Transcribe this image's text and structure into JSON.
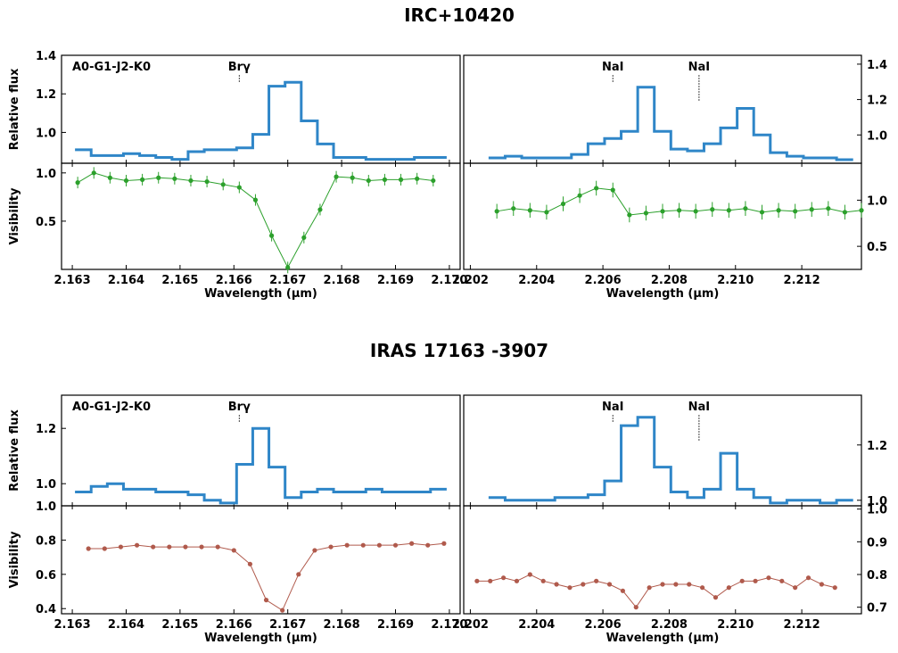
{
  "colors": {
    "flux": "#2f86c8",
    "vis_top": "#2ca02c",
    "vis_bottom": "#b05a4c"
  },
  "chart_data": [
    {
      "title": "IRC+10420",
      "panels": [
        {
          "type": "line",
          "ylabel": "Relative flux",
          "ylabel_side": "left",
          "step": true,
          "x": [
            2.1632,
            2.1635,
            2.1638,
            2.1641,
            2.1644,
            2.1647,
            2.165,
            2.1653,
            2.1656,
            2.1659,
            2.1662,
            2.1665,
            2.1668,
            2.1671,
            2.1674,
            2.1677,
            2.168,
            2.1683,
            2.1686,
            2.1689,
            2.1692,
            2.1695,
            2.1698
          ],
          "values": [
            0.91,
            0.88,
            0.88,
            0.89,
            0.88,
            0.87,
            0.86,
            0.9,
            0.91,
            0.91,
            0.92,
            0.99,
            1.24,
            1.26,
            1.06,
            0.94,
            0.87,
            0.87,
            0.86,
            0.86,
            0.86,
            0.87,
            0.87
          ],
          "xlim": [
            2.1628,
            2.1702
          ],
          "ylim": [
            0.84,
            1.4
          ],
          "yticks": [
            "1.0",
            "1.2",
            "1.4"
          ],
          "ytick_values": [
            1.0,
            1.2,
            1.4
          ],
          "legend": "A0-G1-J2-K0",
          "annotations": [
            {
              "label": "Brγ",
              "x": 2.1661
            }
          ]
        },
        {
          "type": "line",
          "ylabel": "Relative flux",
          "ylabel_side": "right",
          "step": true,
          "x": [
            2.2028,
            2.2033,
            2.2038,
            2.2043,
            2.2048,
            2.2053,
            2.2058,
            2.2063,
            2.2068,
            2.2073,
            2.2078,
            2.2083,
            2.2088,
            2.2093,
            2.2098,
            2.2103,
            2.2108,
            2.2113,
            2.2118,
            2.2123,
            2.2128,
            2.2133
          ],
          "values": [
            0.87,
            0.88,
            0.87,
            0.87,
            0.87,
            0.89,
            0.95,
            0.98,
            1.02,
            1.27,
            1.02,
            0.92,
            0.91,
            0.95,
            1.04,
            1.15,
            1.0,
            0.9,
            0.88,
            0.87,
            0.87,
            0.86
          ],
          "xlim": [
            2.2018,
            2.2138
          ],
          "ylim": [
            0.84,
            1.45
          ],
          "yticks": [
            "1.0",
            "1.2",
            "1.4"
          ],
          "ytick_values": [
            1.0,
            1.2,
            1.4
          ],
          "annotations": [
            {
              "label": "NaI",
              "x": 2.2063
            },
            {
              "label": "NaI",
              "x": 2.2089
            }
          ]
        },
        {
          "type": "line",
          "ylabel": "Visibility",
          "ylabel_side": "left",
          "xlabel": "Wavelength (μm)",
          "x": [
            2.1631,
            2.1634,
            2.1637,
            2.164,
            2.1643,
            2.1646,
            2.1649,
            2.1652,
            2.1655,
            2.1658,
            2.1661,
            2.1664,
            2.1667,
            2.167,
            2.1673,
            2.1676,
            2.1679,
            2.1682,
            2.1685,
            2.1688,
            2.1691,
            2.1694,
            2.1697
          ],
          "values": [
            0.9,
            1.0,
            0.95,
            0.92,
            0.93,
            0.95,
            0.94,
            0.92,
            0.91,
            0.88,
            0.85,
            0.72,
            0.35,
            0.02,
            0.33,
            0.62,
            0.96,
            0.95,
            0.92,
            0.93,
            0.93,
            0.94,
            0.92
          ],
          "error": 0.06,
          "xlim": [
            2.1628,
            2.1702
          ],
          "ylim": [
            0.0,
            1.1
          ],
          "xticks": [
            "2.163",
            "2.164",
            "2.165",
            "2.166",
            "2.167",
            "2.168",
            "2.169",
            "2.170"
          ],
          "xtick_values": [
            2.163,
            2.164,
            2.165,
            2.166,
            2.167,
            2.168,
            2.169,
            2.17
          ],
          "yticks": [
            "0.5",
            "1.0"
          ],
          "ytick_values": [
            0.5,
            1.0
          ]
        },
        {
          "type": "line",
          "ylabel": "Visibility",
          "ylabel_side": "right",
          "xlabel": "Wavelength (μm)",
          "x": [
            2.2028,
            2.2033,
            2.2038,
            2.2043,
            2.2048,
            2.2053,
            2.2058,
            2.2063,
            2.2068,
            2.2073,
            2.2078,
            2.2083,
            2.2088,
            2.2093,
            2.2098,
            2.2103,
            2.2108,
            2.2113,
            2.2118,
            2.2123,
            2.2128,
            2.2133,
            2.2138
          ],
          "values": [
            0.88,
            0.91,
            0.89,
            0.87,
            0.96,
            1.05,
            1.13,
            1.11,
            0.84,
            0.86,
            0.88,
            0.89,
            0.88,
            0.9,
            0.89,
            0.91,
            0.87,
            0.89,
            0.88,
            0.9,
            0.91,
            0.87,
            0.89
          ],
          "error": 0.08,
          "xlim": [
            2.2018,
            2.2138
          ],
          "ylim": [
            0.25,
            1.4
          ],
          "xticks": [
            "2.202",
            "2.204",
            "2.206",
            "2.208",
            "2.210",
            "2.212"
          ],
          "xtick_values": [
            2.202,
            2.204,
            2.206,
            2.208,
            2.21,
            2.212
          ],
          "yticks": [
            "0.5",
            "1.0"
          ],
          "ytick_values": [
            0.5,
            1.0
          ]
        }
      ]
    },
    {
      "title": "IRAS 17163 -3907",
      "panels": [
        {
          "type": "line",
          "ylabel": "Relative flux",
          "ylabel_side": "left",
          "step": true,
          "x": [
            2.1632,
            2.1635,
            2.1638,
            2.1641,
            2.1644,
            2.1647,
            2.165,
            2.1653,
            2.1656,
            2.1659,
            2.1662,
            2.1665,
            2.1668,
            2.1671,
            2.1674,
            2.1677,
            2.168,
            2.1683,
            2.1686,
            2.1689,
            2.1692,
            2.1695,
            2.1698
          ],
          "values": [
            0.97,
            0.99,
            1.0,
            0.98,
            0.98,
            0.97,
            0.97,
            0.96,
            0.94,
            0.93,
            1.07,
            1.2,
            1.06,
            0.95,
            0.97,
            0.98,
            0.97,
            0.97,
            0.98,
            0.97,
            0.97,
            0.97,
            0.98
          ],
          "xlim": [
            2.1628,
            2.1702
          ],
          "ylim": [
            0.92,
            1.32
          ],
          "yticks": [
            "1.0",
            "1.2"
          ],
          "ytick_values": [
            1.0,
            1.2
          ],
          "legend": "A0-G1-J2-K0",
          "annotations": [
            {
              "label": "Brγ",
              "x": 2.1661
            }
          ]
        },
        {
          "type": "line",
          "ylabel": "Relative flux",
          "ylabel_side": "right",
          "step": true,
          "x": [
            2.2028,
            2.2033,
            2.2038,
            2.2043,
            2.2048,
            2.2053,
            2.2058,
            2.2063,
            2.2068,
            2.2073,
            2.2078,
            2.2083,
            2.2088,
            2.2093,
            2.2098,
            2.2103,
            2.2108,
            2.2113,
            2.2118,
            2.2123,
            2.2128,
            2.2133
          ],
          "values": [
            1.01,
            1.0,
            1.0,
            1.0,
            1.01,
            1.01,
            1.02,
            1.07,
            1.27,
            1.3,
            1.12,
            1.03,
            1.01,
            1.04,
            1.17,
            1.04,
            1.01,
            0.99,
            1.0,
            1.0,
            0.99,
            1.0
          ],
          "xlim": [
            2.2018,
            2.2138
          ],
          "ylim": [
            0.98,
            1.38
          ],
          "yticks": [
            "1.0",
            "1.2"
          ],
          "ytick_values": [
            1.0,
            1.2
          ],
          "annotations": [
            {
              "label": "NaI",
              "x": 2.2063
            },
            {
              "label": "NaI",
              "x": 2.2089
            }
          ]
        },
        {
          "type": "line",
          "ylabel": "Visibility",
          "ylabel_side": "left",
          "xlabel": "Wavelength (μm)",
          "x": [
            2.1633,
            2.1636,
            2.1639,
            2.1642,
            2.1645,
            2.1648,
            2.1651,
            2.1654,
            2.1657,
            2.166,
            2.1663,
            2.1666,
            2.1669,
            2.1672,
            2.1675,
            2.1678,
            2.1681,
            2.1684,
            2.1687,
            2.169,
            2.1693,
            2.1696,
            2.1699
          ],
          "values": [
            0.75,
            0.75,
            0.76,
            0.77,
            0.76,
            0.76,
            0.76,
            0.76,
            0.76,
            0.74,
            0.66,
            0.45,
            0.39,
            0.6,
            0.74,
            0.76,
            0.77,
            0.77,
            0.77,
            0.77,
            0.78,
            0.77,
            0.78
          ],
          "xlim": [
            2.1628,
            2.1702
          ],
          "ylim": [
            0.37,
            1.0
          ],
          "xticks": [
            "2.163",
            "2.164",
            "2.165",
            "2.166",
            "2.167",
            "2.168",
            "2.169",
            "2.170"
          ],
          "xtick_values": [
            2.163,
            2.164,
            2.165,
            2.166,
            2.167,
            2.168,
            2.169,
            2.17
          ],
          "yticks": [
            "0.4",
            "0.6",
            "0.8",
            "1.0"
          ],
          "ytick_values": [
            0.4,
            0.6,
            0.8,
            1.0
          ]
        },
        {
          "type": "line",
          "ylabel": "Visibility",
          "ylabel_side": "right",
          "xlabel": "Wavelength (μm)",
          "x": [
            2.2022,
            2.2026,
            2.203,
            2.2034,
            2.2038,
            2.2042,
            2.2046,
            2.205,
            2.2054,
            2.2058,
            2.2062,
            2.2066,
            2.207,
            2.2074,
            2.2078,
            2.2082,
            2.2086,
            2.209,
            2.2094,
            2.2098,
            2.2102,
            2.2106,
            2.211,
            2.2114,
            2.2118,
            2.2122,
            2.2126,
            2.213
          ],
          "values": [
            0.78,
            0.78,
            0.79,
            0.78,
            0.8,
            0.78,
            0.77,
            0.76,
            0.77,
            0.78,
            0.77,
            0.75,
            0.7,
            0.76,
            0.77,
            0.77,
            0.77,
            0.76,
            0.73,
            0.76,
            0.78,
            0.78,
            0.79,
            0.78,
            0.76,
            0.79,
            0.77,
            0.76
          ],
          "xlim": [
            2.2018,
            2.2138
          ],
          "ylim": [
            0.68,
            1.01
          ],
          "xticks": [
            "2.202",
            "2.204",
            "2.206",
            "2.208",
            "2.210",
            "2.212"
          ],
          "xtick_values": [
            2.202,
            2.204,
            2.206,
            2.208,
            2.21,
            2.212
          ],
          "yticks": [
            "0.7",
            "0.8",
            "0.9",
            "1.0"
          ],
          "ytick_values": [
            0.7,
            0.8,
            0.9,
            1.0
          ]
        }
      ]
    }
  ]
}
